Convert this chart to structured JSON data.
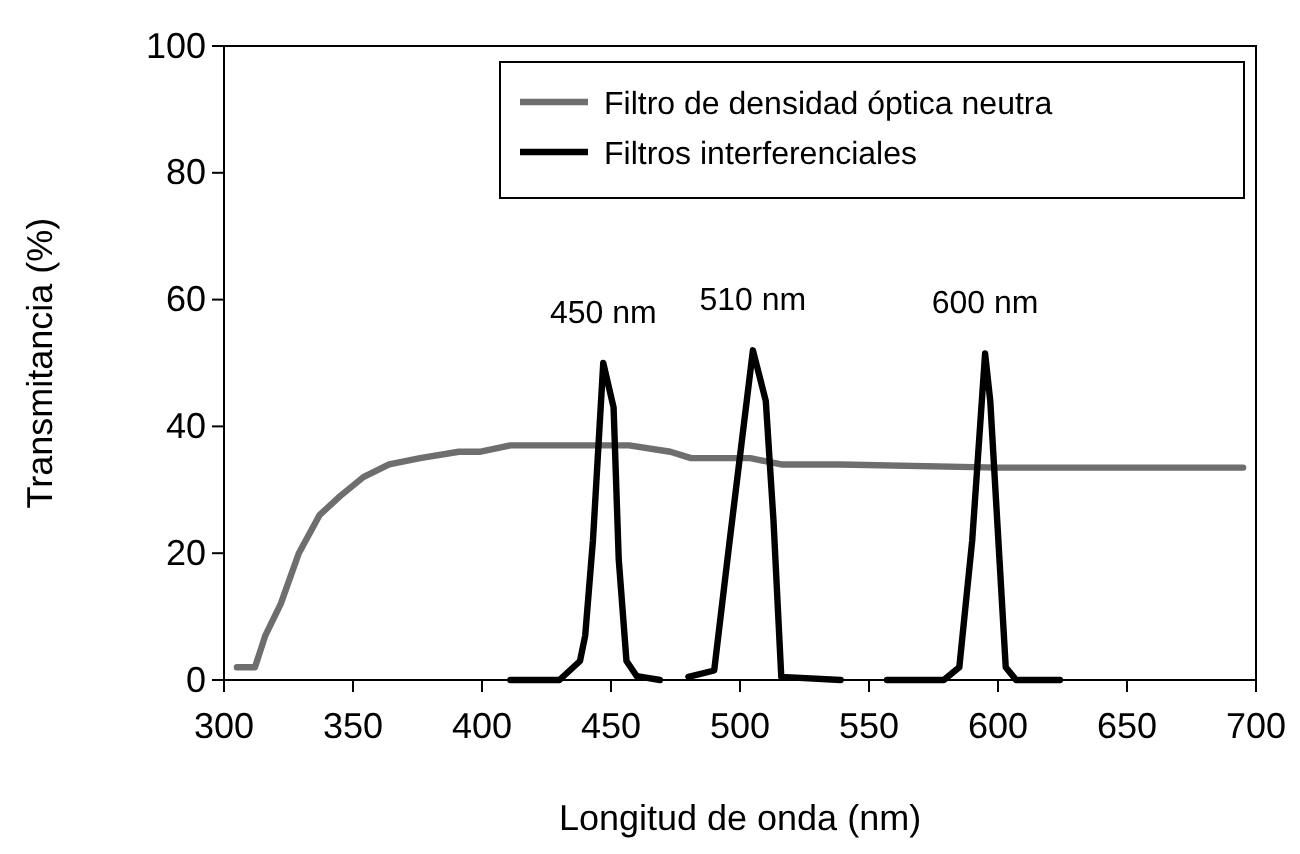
{
  "chart_data": {
    "type": "line",
    "xlabel": "Longitud de onda (nm)",
    "ylabel": "Transmitancia (%)",
    "xlim": [
      300,
      700
    ],
    "xticks": [
      300,
      350,
      400,
      450,
      500,
      550,
      600,
      650,
      700
    ],
    "ylim": [
      0,
      100
    ],
    "yticks": [
      0,
      20,
      40,
      60,
      80,
      100
    ],
    "grid": false,
    "legend": "top right",
    "marker": "none",
    "line_style": "solid",
    "series": [
      {
        "name": "Filtro de densidad óptica neutra",
        "color": "#6e6e6e",
        "x": [
          305,
          312,
          316,
          322,
          329,
          337,
          345,
          354,
          364,
          376,
          391,
          399,
          411,
          446,
          457,
          473,
          481,
          504,
          516,
          539,
          600,
          695
        ],
        "values": [
          2,
          2,
          7,
          12,
          20,
          26,
          29,
          32,
          34,
          35,
          36,
          36,
          37,
          37,
          37,
          36,
          35,
          35,
          34,
          34,
          33.5,
          33.5
        ]
      },
      {
        "name": "Filtros interferenciales",
        "color": "#000000",
        "x": [
          411,
          430,
          438,
          440,
          443,
          447,
          451,
          453,
          456,
          460,
          469,
          475,
          480,
          490,
          496,
          505,
          510,
          513,
          516,
          539,
          548,
          557,
          579,
          585,
          590,
          595,
          597,
          601,
          603,
          607,
          624
        ],
        "values": [
          0,
          0,
          3,
          7,
          22,
          50,
          43,
          19,
          3,
          0.6,
          0,
          null,
          0.5,
          1.5,
          22,
          52,
          44,
          25,
          0.5,
          0,
          null,
          0,
          0,
          2,
          22,
          51.5,
          44,
          16,
          2,
          0,
          0
        ]
      }
    ],
    "annotations": [
      "450 nm",
      "510 nm",
      "600 nm"
    ]
  }
}
